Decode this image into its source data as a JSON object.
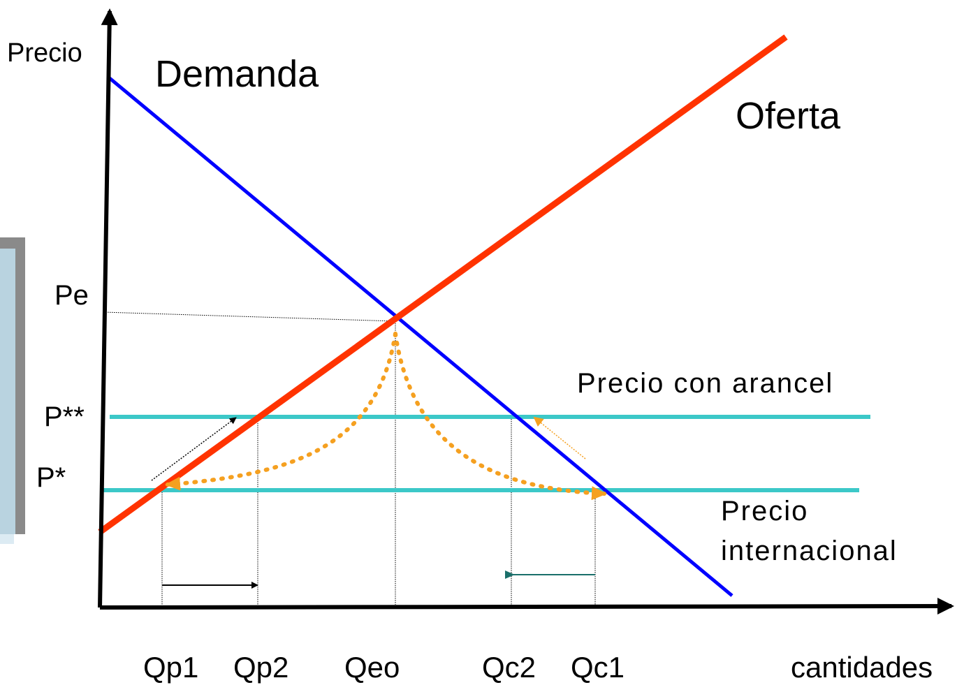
{
  "axes": {
    "y_label": "Precio",
    "x_label": "cantidades"
  },
  "curves": {
    "demand": "Demanda",
    "supply": "Oferta"
  },
  "price_levels": [
    "Pe",
    "P**",
    "P*"
  ],
  "lines": {
    "tariff": "Precio con arancel",
    "international": [
      "Precio",
      "internacional"
    ]
  },
  "quantities": [
    "Qp1",
    "Qp2",
    "Qeo",
    "Qc2",
    "Qc1"
  ]
}
